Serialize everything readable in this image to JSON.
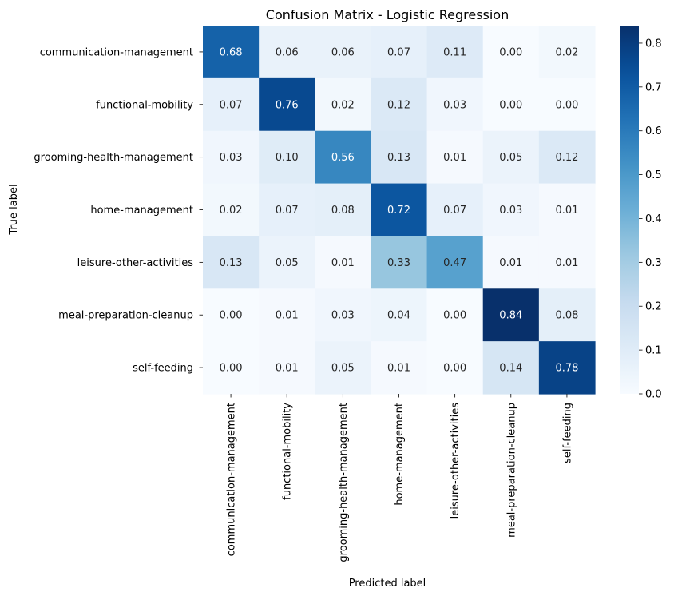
{
  "chart_data": {
    "type": "heatmap",
    "title": "Confusion Matrix - Logistic Regression",
    "xlabel": "Predicted label",
    "ylabel": "True label",
    "row_labels": [
      "communication-management",
      "functional-mobility",
      "grooming-health-management",
      "home-management",
      "leisure-other-activities",
      "meal-preparation-cleanup",
      "self-feeding"
    ],
    "col_labels": [
      "communication-management",
      "functional-mobility",
      "grooming-health-management",
      "home-management",
      "leisure-other-activities",
      "meal-preparation-cleanup",
      "self-feeding"
    ],
    "values": [
      [
        0.68,
        0.06,
        0.06,
        0.07,
        0.11,
        0.0,
        0.02
      ],
      [
        0.07,
        0.76,
        0.02,
        0.12,
        0.03,
        0.0,
        0.0
      ],
      [
        0.03,
        0.1,
        0.56,
        0.13,
        0.01,
        0.05,
        0.12
      ],
      [
        0.02,
        0.07,
        0.08,
        0.72,
        0.07,
        0.03,
        0.01
      ],
      [
        0.13,
        0.05,
        0.01,
        0.33,
        0.47,
        0.01,
        0.01
      ],
      [
        0.0,
        0.01,
        0.03,
        0.04,
        0.0,
        0.84,
        0.08
      ],
      [
        0.0,
        0.01,
        0.05,
        0.01,
        0.0,
        0.14,
        0.78
      ]
    ],
    "colormap": "Blues",
    "vmin": 0.0,
    "vmax": 0.84,
    "colorbar_ticks": [
      "0.0",
      "0.1",
      "0.2",
      "0.3",
      "0.4",
      "0.5",
      "0.6",
      "0.7",
      "0.8"
    ],
    "legend_placement": "right"
  }
}
